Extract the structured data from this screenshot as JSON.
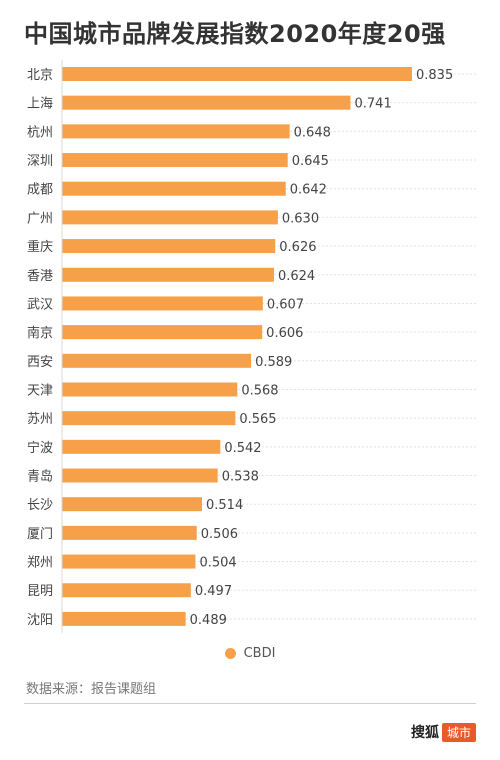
{
  "title": "中国城市品牌发展指数2020年度20强",
  "source": "数据来源：报告课题组",
  "brand": {
    "name": "搜狐",
    "badge": "城市"
  },
  "colors": {
    "bar": "#f7a04a",
    "grid": "#e3e3e3",
    "text": "#444444"
  },
  "chart_data": {
    "type": "bar",
    "orientation": "horizontal",
    "categories": [
      "北京",
      "上海",
      "杭州",
      "深圳",
      "成都",
      "广州",
      "重庆",
      "香港",
      "武汉",
      "南京",
      "西安",
      "天津",
      "苏州",
      "宁波",
      "青岛",
      "长沙",
      "厦门",
      "郑州",
      "昆明",
      "沈阳"
    ],
    "series": [
      {
        "name": "CBDI",
        "values": [
          0.835,
          0.741,
          0.648,
          0.645,
          0.642,
          0.63,
          0.626,
          0.624,
          0.607,
          0.606,
          0.589,
          0.568,
          0.565,
          0.542,
          0.538,
          0.514,
          0.506,
          0.504,
          0.497,
          0.489
        ]
      }
    ],
    "value_labels": [
      "0.835",
      "0.741",
      "0.648",
      "0.645",
      "0.642",
      "0.630",
      "0.626",
      "0.624",
      "0.607",
      "0.606",
      "0.589",
      "0.568",
      "0.565",
      "0.542",
      "0.538",
      "0.514",
      "0.506",
      "0.504",
      "0.497",
      "0.489"
    ],
    "xlim": [
      0.3,
      0.835
    ],
    "grid": true,
    "legend": "bottom-center"
  }
}
